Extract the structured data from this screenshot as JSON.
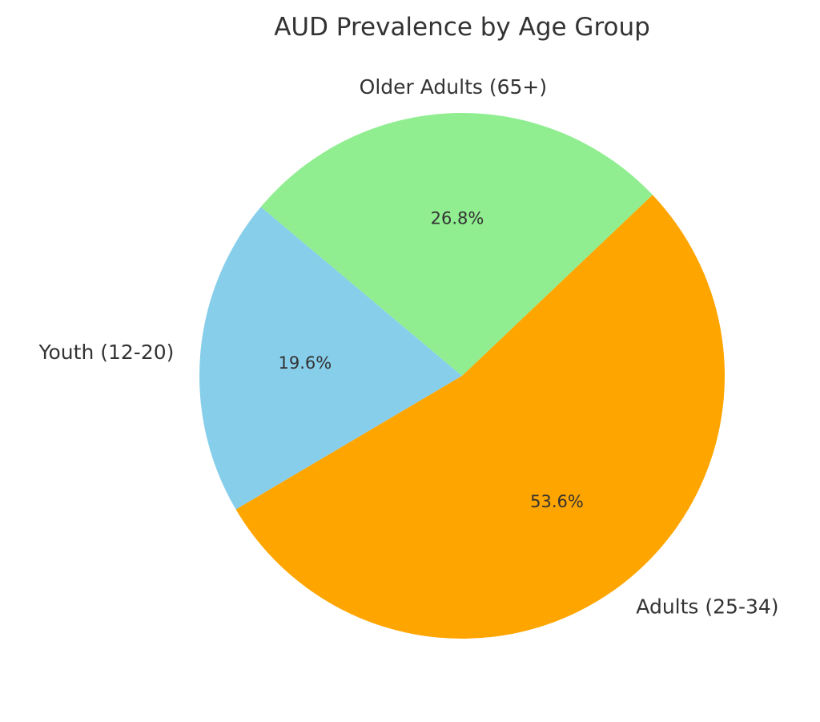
{
  "chart_data": {
    "type": "pie",
    "title": "AUD Prevalence by Age Group",
    "categories": [
      "Youth (12-20)",
      "Adults (25-34)",
      "Older Adults (65+)"
    ],
    "values": [
      19.6,
      53.6,
      26.8
    ],
    "value_labels": [
      "19.6%",
      "53.6%",
      "26.8%"
    ],
    "colors": [
      "#87CEEB",
      "#FFA500",
      "#90EE90"
    ],
    "start_angle_deg": 140,
    "direction": "counterclockwise",
    "legend": "none"
  }
}
